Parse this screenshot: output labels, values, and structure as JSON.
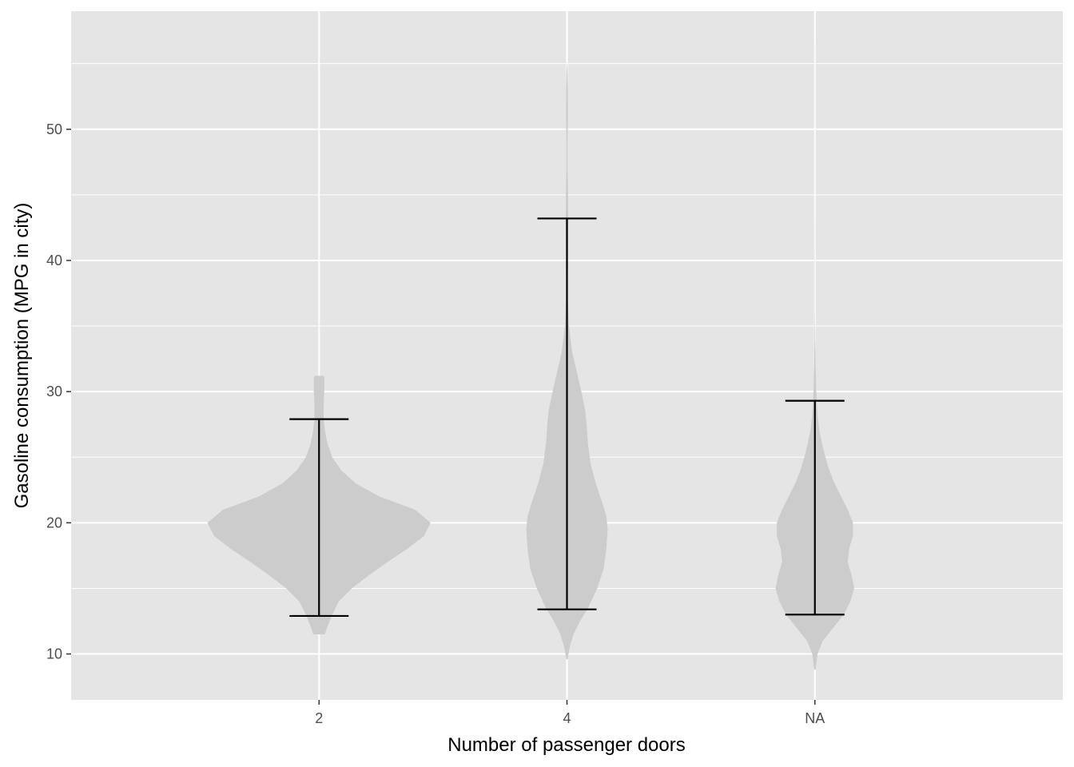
{
  "chart_data": {
    "type": "violin",
    "title": "",
    "xlabel": "Number of passenger doors",
    "ylabel": "Gasoline consumption (MPG in city)",
    "categories": [
      "2",
      "4",
      "NA"
    ],
    "ylim": [
      6.5,
      59
    ],
    "yticks": [
      10,
      20,
      30,
      40,
      50
    ],
    "grid": true,
    "legend": "none",
    "colors": {
      "panel_background": "#e5e5e5",
      "grid": "#ffffff",
      "violin_fill": "#cccccc",
      "error_bar": "#000000",
      "tick_label": "#4d4d4d"
    },
    "groups": [
      {
        "category": "2",
        "error_bar": {
          "low": 12.9,
          "high": 27.9
        },
        "density": [
          {
            "y": 11.5,
            "w": 0.045
          },
          {
            "y": 12,
            "w": 0.06
          },
          {
            "y": 13,
            "w": 0.1
          },
          {
            "y": 14,
            "w": 0.15
          },
          {
            "y": 15,
            "w": 0.25
          },
          {
            "y": 16,
            "w": 0.38
          },
          {
            "y": 17,
            "w": 0.52
          },
          {
            "y": 18,
            "w": 0.67
          },
          {
            "y": 19,
            "w": 0.8
          },
          {
            "y": 20,
            "w": 0.85
          },
          {
            "y": 21,
            "w": 0.73
          },
          {
            "y": 22,
            "w": 0.46
          },
          {
            "y": 23,
            "w": 0.28
          },
          {
            "y": 24,
            "w": 0.17
          },
          {
            "y": 25,
            "w": 0.1
          },
          {
            "y": 26,
            "w": 0.065
          },
          {
            "y": 27,
            "w": 0.045
          },
          {
            "y": 28,
            "w": 0.035
          },
          {
            "y": 29,
            "w": 0.035
          },
          {
            "y": 30,
            "w": 0.04
          },
          {
            "y": 31,
            "w": 0.04
          },
          {
            "y": 31.2,
            "w": 0.035
          }
        ]
      },
      {
        "category": "4",
        "error_bar": {
          "low": 13.4,
          "high": 43.2
        },
        "density": [
          {
            "y": 9.6,
            "w": 0.005
          },
          {
            "y": 10.5,
            "w": 0.02
          },
          {
            "y": 11.5,
            "w": 0.05
          },
          {
            "y": 12.5,
            "w": 0.1
          },
          {
            "y": 13.5,
            "w": 0.16
          },
          {
            "y": 15,
            "w": 0.23
          },
          {
            "y": 16.5,
            "w": 0.28
          },
          {
            "y": 18,
            "w": 0.3
          },
          {
            "y": 19.5,
            "w": 0.31
          },
          {
            "y": 20.5,
            "w": 0.3
          },
          {
            "y": 21.5,
            "w": 0.27
          },
          {
            "y": 23,
            "w": 0.22
          },
          {
            "y": 24.5,
            "w": 0.18
          },
          {
            "y": 26,
            "w": 0.16
          },
          {
            "y": 27.5,
            "w": 0.15
          },
          {
            "y": 28.5,
            "w": 0.14
          },
          {
            "y": 30,
            "w": 0.11
          },
          {
            "y": 31.5,
            "w": 0.075
          },
          {
            "y": 33,
            "w": 0.04
          },
          {
            "y": 35,
            "w": 0.015
          },
          {
            "y": 37,
            "w": 0.006
          },
          {
            "y": 39,
            "w": 0.006
          },
          {
            "y": 41,
            "w": 0.007
          },
          {
            "y": 43,
            "w": 0.01
          },
          {
            "y": 45,
            "w": 0.008
          },
          {
            "y": 47,
            "w": 0.005
          },
          {
            "y": 49,
            "w": 0.005
          },
          {
            "y": 51,
            "w": 0.007
          },
          {
            "y": 53,
            "w": 0.006
          },
          {
            "y": 54,
            "w": 0.004
          },
          {
            "y": 55,
            "w": 0.001
          }
        ]
      },
      {
        "category": "NA",
        "error_bar": {
          "low": 13,
          "high": 29.3
        },
        "density": [
          {
            "y": 8.8,
            "w": 0.005
          },
          {
            "y": 10,
            "w": 0.02
          },
          {
            "y": 11,
            "w": 0.06
          },
          {
            "y": 12,
            "w": 0.14
          },
          {
            "y": 13,
            "w": 0.22
          },
          {
            "y": 14,
            "w": 0.27
          },
          {
            "y": 15,
            "w": 0.3
          },
          {
            "y": 16,
            "w": 0.28
          },
          {
            "y": 17,
            "w": 0.25
          },
          {
            "y": 18,
            "w": 0.26
          },
          {
            "y": 19,
            "w": 0.29
          },
          {
            "y": 20,
            "w": 0.29
          },
          {
            "y": 21,
            "w": 0.25
          },
          {
            "y": 22,
            "w": 0.2
          },
          {
            "y": 23,
            "w": 0.15
          },
          {
            "y": 24,
            "w": 0.11
          },
          {
            "y": 25,
            "w": 0.08
          },
          {
            "y": 26,
            "w": 0.055
          },
          {
            "y": 27,
            "w": 0.035
          },
          {
            "y": 28,
            "w": 0.022
          },
          {
            "y": 29,
            "w": 0.015
          },
          {
            "y": 30,
            "w": 0.01
          },
          {
            "y": 32,
            "w": 0.006
          },
          {
            "y": 34,
            "w": 0.003
          },
          {
            "y": 36,
            "w": 0.001
          },
          {
            "y": 40,
            "w": 0.0008
          },
          {
            "y": 45,
            "w": 0.0006
          },
          {
            "y": 50,
            "w": 0.0005
          },
          {
            "y": 53,
            "w": 0.0004
          },
          {
            "y": 56.5,
            "w": 0.0001
          }
        ]
      }
    ]
  }
}
